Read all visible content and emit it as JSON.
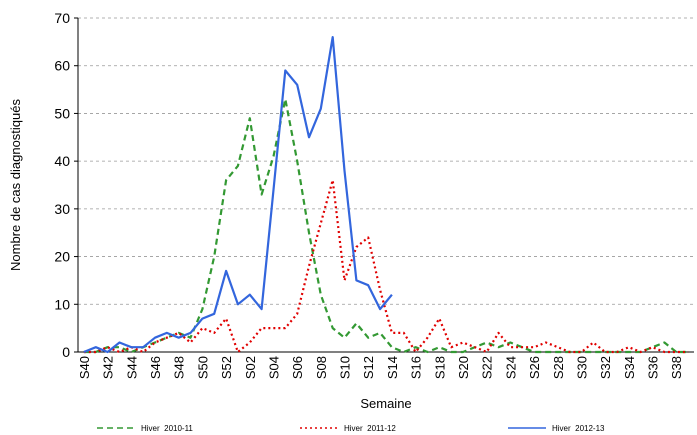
{
  "chart_data": {
    "type": "line",
    "x_label": "Semaine",
    "y_label": "Nombre de cas diagnostiqués",
    "categories": [
      "S40",
      null,
      "S42",
      null,
      "S44",
      null,
      "S46",
      null,
      "S48",
      null,
      "S50",
      null,
      "S52",
      null,
      "S02",
      null,
      "S04",
      null,
      "S06",
      null,
      "S08",
      null,
      "S10",
      null,
      "S12",
      null,
      "S14",
      null,
      "S16",
      null,
      "S18",
      null,
      "S20",
      null,
      "S22",
      null,
      "S24",
      null,
      "S26",
      null,
      "S28",
      null,
      "S30",
      null,
      "S32",
      null,
      "S34",
      null,
      "S36",
      null,
      "S38",
      null
    ],
    "ylim": [
      0,
      70
    ],
    "yticks": [
      0,
      10,
      20,
      30,
      40,
      50,
      60,
      70
    ],
    "grid": true,
    "legend": "bottom",
    "series": [
      {
        "name": "Hiver  2010-11",
        "color": "#339933",
        "dash": "6,4",
        "values": [
          0,
          0,
          1,
          1,
          0,
          1,
          2,
          3,
          4,
          3,
          9,
          20,
          36,
          39,
          49,
          33,
          41,
          53,
          40,
          25,
          12,
          5,
          3,
          6,
          3,
          4,
          1,
          0,
          1,
          0,
          1,
          0,
          0,
          1,
          2,
          1,
          2,
          1,
          0,
          0,
          0,
          0,
          0,
          0,
          0,
          0,
          0,
          0,
          1,
          2,
          0,
          0
        ]
      },
      {
        "name": "Hiver  2011-12",
        "color": "#e00000",
        "dash": "2,3",
        "values": [
          0,
          0,
          1,
          0,
          1,
          0,
          2,
          3,
          4,
          2,
          5,
          4,
          7,
          0,
          2,
          5,
          5,
          5,
          8,
          18,
          27,
          36,
          15,
          22,
          24,
          13,
          4,
          4,
          0,
          3,
          7,
          1,
          2,
          1,
          0,
          4,
          1,
          1,
          1,
          2,
          1,
          0,
          0,
          2,
          0,
          0,
          1,
          0,
          1,
          0,
          0,
          0
        ]
      },
      {
        "name": "Hiver  2012-13",
        "color": "#3366dd",
        "dash": "",
        "values": [
          0,
          1,
          0,
          2,
          1,
          1,
          3,
          4,
          3,
          4,
          7,
          8,
          17,
          10,
          12,
          9,
          34,
          59,
          56,
          45,
          51,
          66,
          38,
          15,
          14,
          9,
          12,
          null,
          null,
          null,
          null,
          null,
          null,
          null,
          null,
          null,
          null,
          null,
          null,
          null,
          null,
          null,
          null,
          null,
          null,
          null,
          null,
          null,
          null,
          null,
          null,
          null
        ]
      }
    ]
  }
}
